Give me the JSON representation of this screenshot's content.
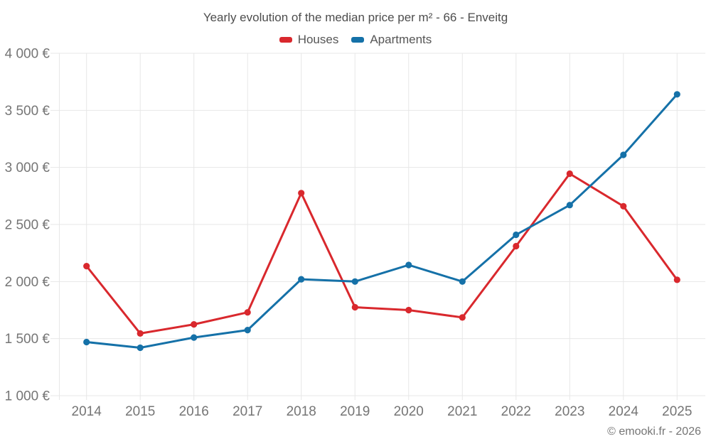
{
  "chart": {
    "title": "Yearly evolution of the median price per m² - 66 - Enveitg"
  },
  "footer": {
    "copyright": "© emooki.fr - 2026"
  },
  "colors": {
    "background": "#ffffff",
    "grid": "#e7e7e7",
    "axis_text": "#757575",
    "title_text": "#4d4d4d",
    "houses": "#d9282d",
    "apartments": "#1571a8"
  },
  "chart_data": {
    "type": "line",
    "title": "Yearly evolution of the median price per m² - 66 - Enveitg",
    "xlabel": "",
    "ylabel": "",
    "categories": [
      "2014",
      "2015",
      "2016",
      "2017",
      "2018",
      "2019",
      "2020",
      "2021",
      "2022",
      "2023",
      "2024",
      "2025"
    ],
    "series": [
      {
        "name": "Houses",
        "color": "#d9282d",
        "values": [
          2135,
          1545,
          1625,
          1730,
          2775,
          1775,
          1750,
          1685,
          2310,
          2945,
          2660,
          2015
        ]
      },
      {
        "name": "Apartments",
        "color": "#1571a8",
        "values": [
          1470,
          1420,
          1510,
          1575,
          2020,
          2000,
          2145,
          2000,
          2410,
          2670,
          3110,
          3640
        ]
      }
    ],
    "ylim": [
      1000,
      4000
    ],
    "y_ticks": [
      1000,
      1500,
      2000,
      2500,
      3000,
      3500,
      4000
    ],
    "y_tick_labels": [
      "1 000 €",
      "1 500 €",
      "2 000 €",
      "2 500 €",
      "3 000 €",
      "3 500 €",
      "4 000 €"
    ],
    "grid": true,
    "legend_position": "top",
    "marker": "circle"
  }
}
